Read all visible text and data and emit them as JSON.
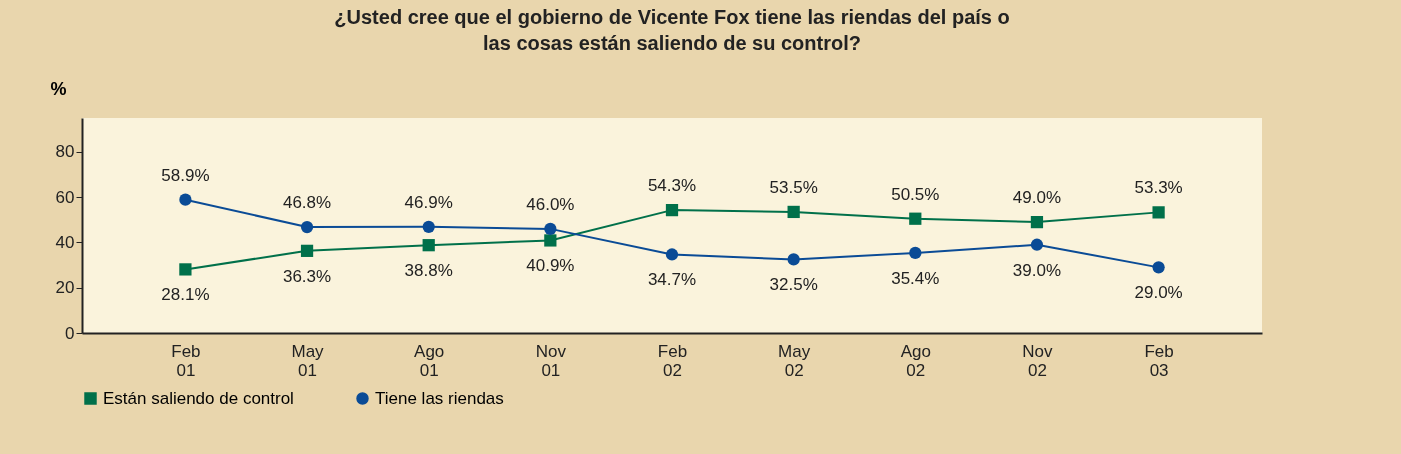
{
  "chart_data": {
    "type": "line",
    "title": "¿Usted cree que el gobierno de Vicente Fox tiene las riendas del país o las cosas están saliendo de su control?",
    "ylabel": "%",
    "categories": [
      "Feb 01",
      "May 01",
      "Ago 01",
      "Nov 01",
      "Feb 02",
      "May 02",
      "Ago 02",
      "Nov 02",
      "Feb 03"
    ],
    "series": [
      {
        "name": "Están saliendo de control",
        "color": "#00704a",
        "marker": "square",
        "values": [
          28.1,
          36.3,
          38.8,
          40.9,
          54.3,
          53.5,
          50.5,
          49.0,
          53.3
        ],
        "value_labels": [
          "28.1%",
          "36.3%",
          "38.8%",
          "40.9%",
          "54.3%",
          "53.5%",
          "50.5%",
          "49.0%",
          "53.3%"
        ]
      },
      {
        "name": "Tiene las riendas",
        "color": "#0a4b96",
        "marker": "circle",
        "values": [
          58.9,
          46.8,
          46.9,
          46.0,
          34.7,
          32.5,
          35.4,
          39.0,
          29.0
        ],
        "value_labels": [
          "58.9%",
          "46.8%",
          "46.9%",
          "46.0%",
          "34.7%",
          "32.5%",
          "35.4%",
          "39.0%",
          "29.0%"
        ]
      }
    ],
    "ylim": [
      0,
      95
    ],
    "yticks": [
      0,
      20,
      40,
      60,
      80
    ],
    "grid": false,
    "legend": "bottom",
    "line_style": "solid"
  }
}
